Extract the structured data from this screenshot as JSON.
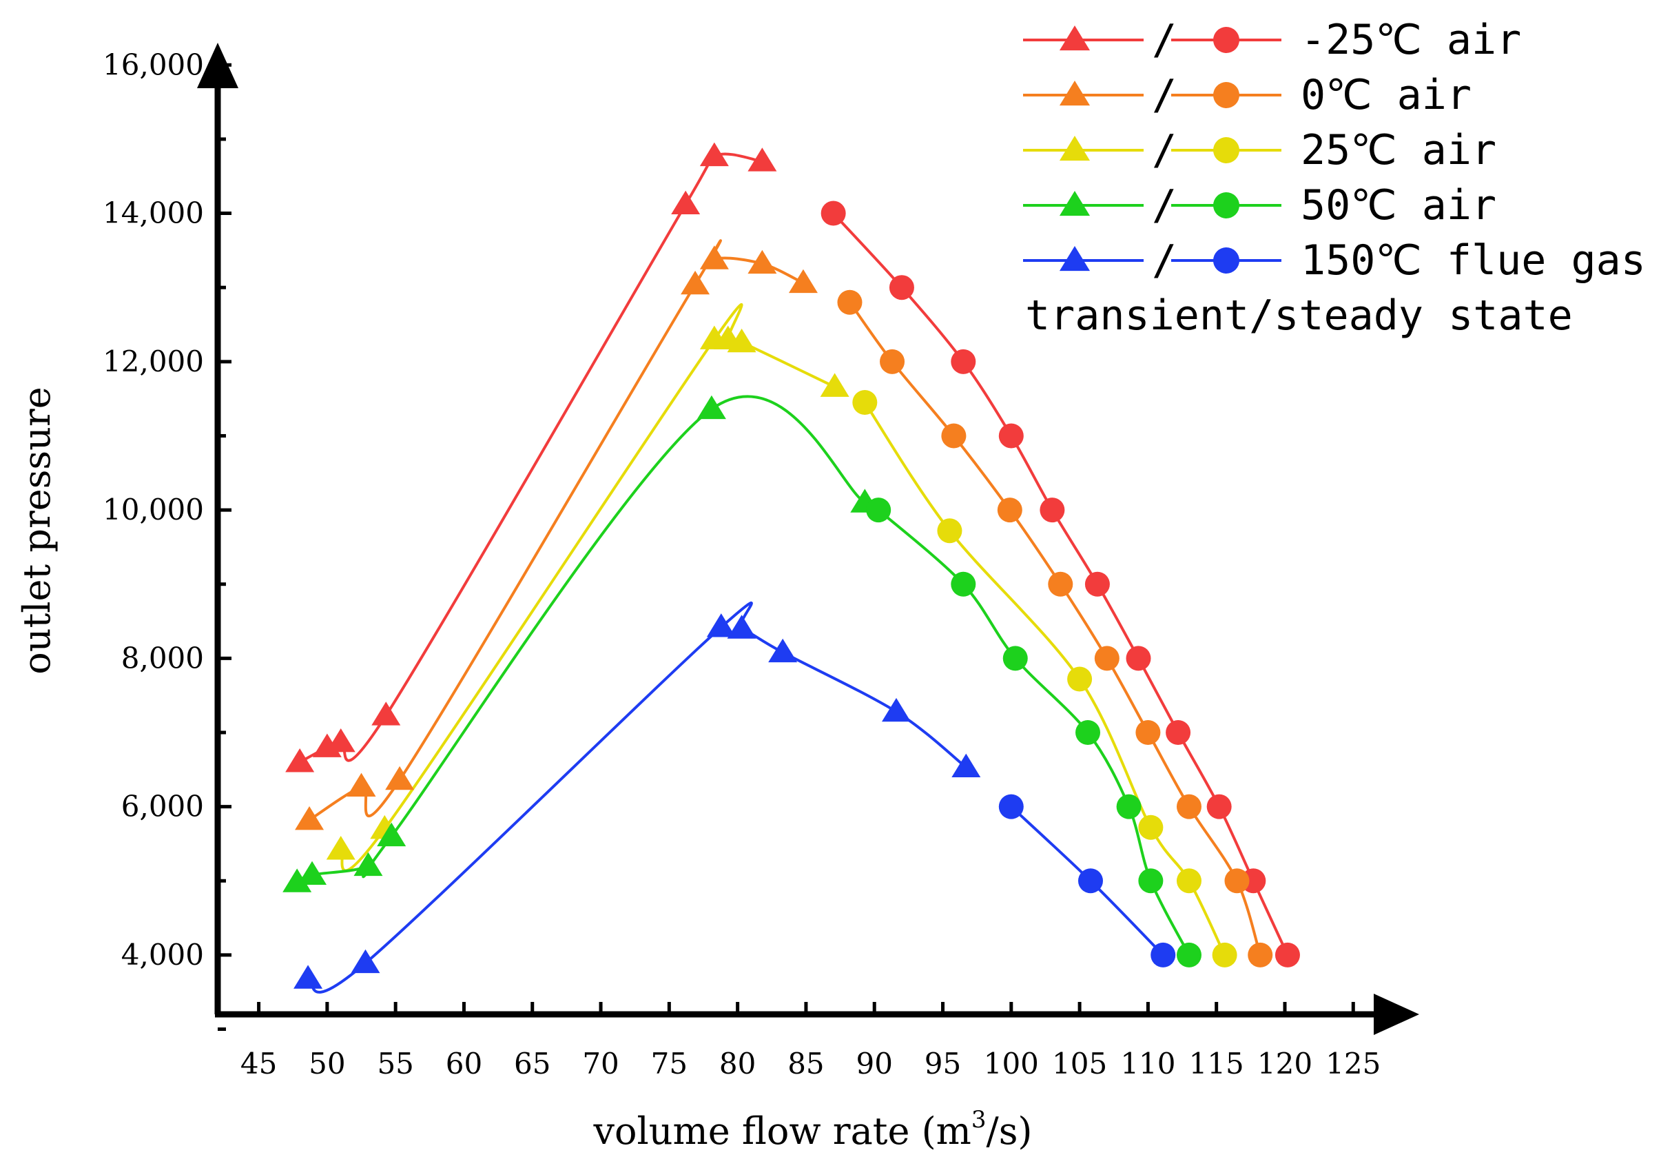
{
  "chart_data": {
    "type": "line",
    "xlabel": "volume flow rate (m³/s)",
    "xlabel_main": "volume flow rate (m",
    "xlabel_sup": "3",
    "xlabel_end": "/s)",
    "ylabel": "outlet pressure",
    "xlim": [
      42,
      127
    ],
    "ylim": [
      3200,
      16300
    ],
    "xticks": [
      45,
      50,
      55,
      60,
      65,
      70,
      75,
      80,
      85,
      90,
      95,
      100,
      105,
      110,
      115,
      120,
      125
    ],
    "yticks": [
      4000,
      6000,
      8000,
      10000,
      12000,
      14000,
      16000
    ],
    "ytick_labels": [
      "4,000",
      "6,000",
      "8,000",
      "10,000",
      "12,000",
      "14,000",
      "16,000"
    ],
    "legend_position": "top-right",
    "legend_note": "transient/steady state",
    "legend_separator": "/",
    "series": [
      {
        "name": "-25℃ air",
        "color": "#f23c3c",
        "transient": [
          [
            48,
            6600
          ],
          [
            50,
            6800
          ],
          [
            51,
            6870
          ],
          [
            54.3,
            7230
          ],
          [
            76.2,
            14120
          ],
          [
            78.3,
            14770
          ],
          [
            81.8,
            14700
          ]
        ],
        "steady": [
          [
            87,
            14000
          ],
          [
            92,
            13000
          ],
          [
            96.5,
            12000
          ],
          [
            100,
            11000
          ],
          [
            103,
            10000
          ],
          [
            106.3,
            9000
          ],
          [
            109.3,
            8000
          ],
          [
            112.2,
            7000
          ],
          [
            115.2,
            6000
          ],
          [
            117.7,
            5000
          ],
          [
            120.2,
            4000
          ]
        ]
      },
      {
        "name": "0℃ air",
        "color": "#f57f1f",
        "transient": [
          [
            48.7,
            5820
          ],
          [
            52.5,
            6270
          ],
          [
            55.3,
            6360
          ],
          [
            76.9,
            13040
          ],
          [
            78.3,
            13380
          ],
          [
            81.8,
            13320
          ],
          [
            84.8,
            13060
          ]
        ],
        "steady": [
          [
            88.2,
            12800
          ],
          [
            91.3,
            12000
          ],
          [
            95.8,
            11000
          ],
          [
            99.9,
            10000
          ],
          [
            103.6,
            9000
          ],
          [
            107,
            8000
          ],
          [
            110,
            7000
          ],
          [
            113,
            6000
          ],
          [
            116.5,
            5000
          ],
          [
            118.2,
            4000
          ]
        ]
      },
      {
        "name": "25℃ air",
        "color": "#e6dc0a",
        "transient": [
          [
            51,
            5420
          ],
          [
            54.2,
            5700
          ],
          [
            78.3,
            12300
          ],
          [
            79.3,
            12300
          ],
          [
            80.3,
            12260
          ],
          [
            87.1,
            11660
          ]
        ],
        "steady": [
          [
            89.3,
            11450
          ],
          [
            95.5,
            9720
          ],
          [
            105,
            7720
          ],
          [
            110.2,
            5720
          ],
          [
            113,
            5000
          ],
          [
            115.6,
            4000
          ]
        ]
      },
      {
        "name": "50℃ air",
        "color": "#1dd11d",
        "transient": [
          [
            47.8,
            4980
          ],
          [
            48.9,
            5080
          ],
          [
            53,
            5200
          ],
          [
            54.7,
            5600
          ],
          [
            78.1,
            11360
          ],
          [
            89.3,
            10100
          ]
        ],
        "steady": [
          [
            90.3,
            10000
          ],
          [
            96.5,
            9000
          ],
          [
            100.3,
            8000
          ],
          [
            105.6,
            7000
          ],
          [
            108.6,
            6000
          ],
          [
            110.2,
            5000
          ],
          [
            113,
            4000
          ]
        ]
      },
      {
        "name": "150℃ flue gas",
        "color": "#1e3cf2",
        "transient": [
          [
            48.6,
            3680
          ],
          [
            52.8,
            3890
          ],
          [
            78.8,
            8420
          ],
          [
            80.3,
            8400
          ],
          [
            83.3,
            8080
          ],
          [
            91.6,
            7280
          ],
          [
            96.7,
            6530
          ]
        ],
        "steady": [
          [
            100,
            6000
          ],
          [
            105.8,
            5000
          ],
          [
            111.1,
            4000
          ]
        ]
      }
    ]
  }
}
